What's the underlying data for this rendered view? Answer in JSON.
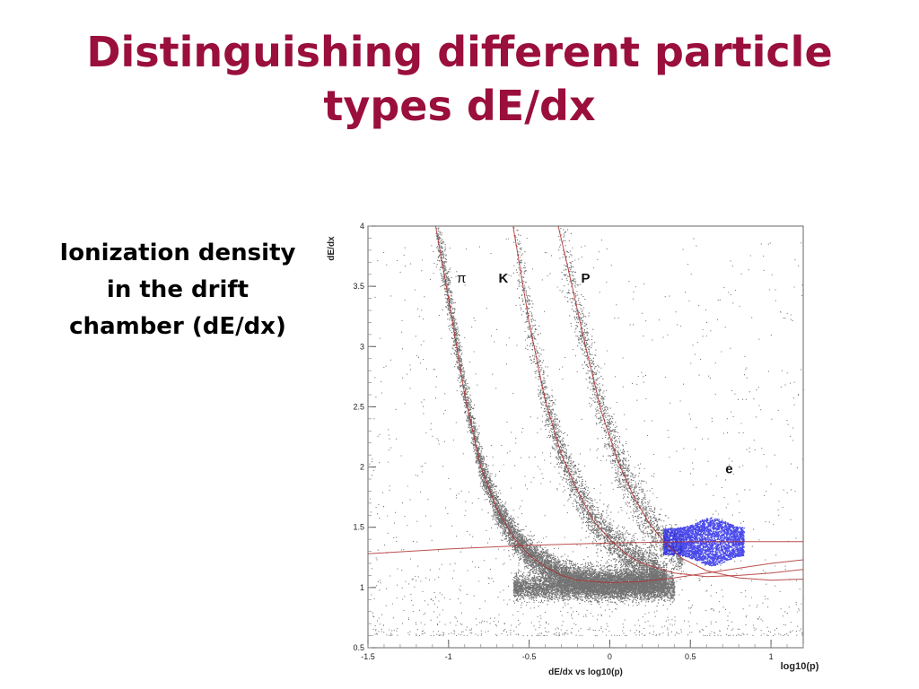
{
  "slide": {
    "title_line1": "Distinguishing different particle",
    "title_line2": "types dE/dx",
    "text_line1": "Ionization density",
    "text_line2": "in the drift",
    "text_line3": "chamber  (dE/dx)"
  },
  "colors": {
    "title": "#9a0f3c",
    "curves": "#b03030",
    "electron_points": "#1e1ee6",
    "points": "#000000"
  },
  "chart_data": {
    "type": "scatter",
    "title": "",
    "xlabel": "dE/dx vs log10(p)",
    "x_end_label": "log10(p)",
    "ylabel": "dE/dx",
    "xlim": [
      -1.5,
      1.2
    ],
    "ylim": [
      0.5,
      4
    ],
    "x_ticks": [
      "-1.5",
      "-1",
      "-0.5",
      "0",
      "0.5",
      "1"
    ],
    "x_tick_values": [
      -1.5,
      -1,
      -0.5,
      0,
      0.5,
      1
    ],
    "y_ticks": [
      "0.5",
      "1",
      "1.5",
      "2",
      "2.5",
      "3",
      "3.5",
      "4"
    ],
    "y_tick_values": [
      0.5,
      1,
      1.5,
      2,
      2.5,
      3,
      3.5,
      4
    ],
    "grid": false,
    "series": [
      {
        "name": "π",
        "label_at": [
          -0.92,
          3.53
        ],
        "points": [
          [
            -1.08,
            4.0
          ],
          [
            -1.0,
            3.4
          ],
          [
            -0.9,
            2.6
          ],
          [
            -0.8,
            2.0
          ],
          [
            -0.7,
            1.65
          ],
          [
            -0.6,
            1.42
          ],
          [
            -0.5,
            1.27
          ],
          [
            -0.4,
            1.17
          ],
          [
            -0.3,
            1.1
          ],
          [
            -0.2,
            1.06
          ],
          [
            0.0,
            1.04
          ],
          [
            0.2,
            1.05
          ],
          [
            0.4,
            1.08
          ],
          [
            0.6,
            1.12
          ],
          [
            0.8,
            1.16
          ],
          [
            1.0,
            1.2
          ],
          [
            1.2,
            1.23
          ]
        ]
      },
      {
        "name": "K",
        "label_at": [
          -0.66,
          3.53
        ],
        "points": [
          [
            -0.6,
            4.0
          ],
          [
            -0.5,
            3.2
          ],
          [
            -0.4,
            2.55
          ],
          [
            -0.3,
            2.1
          ],
          [
            -0.2,
            1.8
          ],
          [
            -0.1,
            1.55
          ],
          [
            0.0,
            1.4
          ],
          [
            0.1,
            1.28
          ],
          [
            0.2,
            1.2
          ],
          [
            0.4,
            1.12
          ],
          [
            0.6,
            1.09
          ],
          [
            0.8,
            1.1
          ],
          [
            1.0,
            1.12
          ],
          [
            1.2,
            1.15
          ]
        ]
      },
      {
        "name": "P",
        "label_at": [
          -0.15,
          3.53
        ],
        "points": [
          [
            -0.32,
            4.0
          ],
          [
            -0.25,
            3.6
          ],
          [
            -0.15,
            3.0
          ],
          [
            -0.05,
            2.45
          ],
          [
            0.05,
            2.05
          ],
          [
            0.15,
            1.75
          ],
          [
            0.25,
            1.52
          ],
          [
            0.35,
            1.36
          ],
          [
            0.45,
            1.24
          ],
          [
            0.6,
            1.14
          ],
          [
            0.8,
            1.08
          ],
          [
            1.0,
            1.06
          ],
          [
            1.2,
            1.07
          ]
        ]
      },
      {
        "name": "e",
        "label_at": [
          0.74,
          1.95
        ],
        "points": [
          [
            -1.5,
            1.28
          ],
          [
            -1.0,
            1.32
          ],
          [
            -0.5,
            1.35
          ],
          [
            0.0,
            1.37
          ],
          [
            0.5,
            1.38
          ],
          [
            1.0,
            1.38
          ],
          [
            1.2,
            1.38
          ]
        ]
      }
    ],
    "electron_cluster": {
      "x_range": [
        0.33,
        0.83
      ],
      "y_range": [
        1.2,
        1.6
      ],
      "center": [
        0.63,
        1.38
      ]
    }
  }
}
